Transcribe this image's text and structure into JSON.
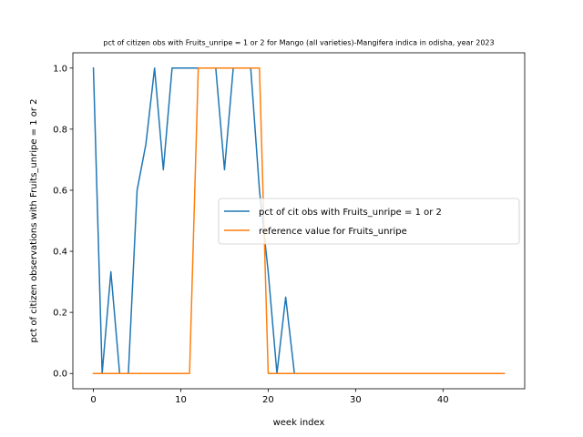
{
  "chart_data": {
    "type": "line",
    "title": "pct of citizen obs with Fruits_unripe = 1 or 2 for Mango (all varieties)-Mangifera indica in odisha, year 2023",
    "xlabel": "week index",
    "ylabel": "pct of citizen observations with Fruits_unripe = 1 or 2",
    "xlim": [
      -2.35,
      49.35
    ],
    "ylim": [
      -0.05,
      1.05
    ],
    "xticks": [
      0,
      10,
      20,
      30,
      40
    ],
    "yticks": [
      0.0,
      0.2,
      0.4,
      0.6,
      0.8,
      1.0
    ],
    "xtick_labels": [
      "0",
      "10",
      "20",
      "30",
      "40"
    ],
    "ytick_labels": [
      "0.0",
      "0.2",
      "0.4",
      "0.6",
      "0.8",
      "1.0"
    ],
    "grid": false,
    "legend_position": "center-right",
    "series": [
      {
        "name": "pct of cit obs with Fruits_unripe = 1 or 2",
        "color": "#1f77b4",
        "x": [
          0,
          1,
          2,
          3,
          4,
          5,
          6,
          7,
          8,
          9,
          10,
          11,
          12,
          13,
          14,
          15,
          16,
          17,
          18,
          19,
          20,
          21,
          22,
          23,
          24,
          25,
          26,
          27,
          28,
          29,
          30,
          31,
          32,
          33,
          34,
          35,
          36,
          37,
          38,
          39,
          40,
          41,
          42,
          43,
          44,
          45,
          46,
          47
        ],
        "y": [
          1.0,
          0.0,
          0.333,
          0.0,
          0.0,
          0.6,
          0.75,
          1.0,
          0.667,
          1.0,
          1.0,
          1.0,
          1.0,
          1.0,
          1.0,
          0.667,
          1.0,
          1.0,
          1.0,
          0.6,
          0.333,
          0.0,
          0.25,
          0.0,
          0.0,
          0.0,
          0.0,
          0.0,
          0.0,
          0.0,
          0.0,
          0.0,
          0.0,
          0.0,
          0.0,
          0.0,
          0.0,
          0.0,
          0.0,
          0.0,
          0.0,
          0.0,
          0.0,
          0.0,
          0.0,
          0.0,
          0.0,
          0.0
        ]
      },
      {
        "name": "reference value for Fruits_unripe",
        "color": "#ff7f0e",
        "x": [
          0,
          1,
          2,
          3,
          4,
          5,
          6,
          7,
          8,
          9,
          10,
          11,
          12,
          13,
          14,
          15,
          16,
          17,
          18,
          19,
          20,
          21,
          22,
          23,
          24,
          25,
          26,
          27,
          28,
          29,
          30,
          31,
          32,
          33,
          34,
          35,
          36,
          37,
          38,
          39,
          40,
          41,
          42,
          43,
          44,
          45,
          46,
          47
        ],
        "y": [
          0,
          0,
          0,
          0,
          0,
          0,
          0,
          0,
          0,
          0,
          0,
          0,
          1,
          1,
          1,
          1,
          1,
          1,
          1,
          1,
          0,
          0,
          0,
          0,
          0,
          0,
          0,
          0,
          0,
          0,
          0,
          0,
          0,
          0,
          0,
          0,
          0,
          0,
          0,
          0,
          0,
          0,
          0,
          0,
          0,
          0,
          0,
          0
        ]
      }
    ]
  }
}
